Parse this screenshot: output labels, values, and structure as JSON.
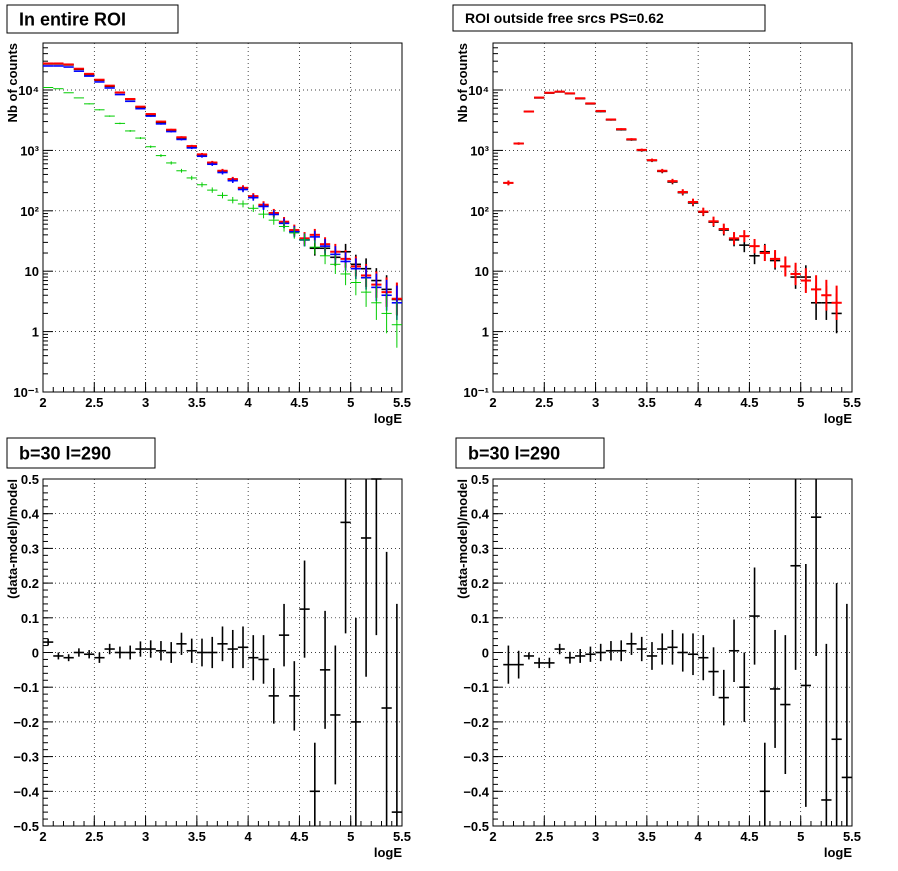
{
  "colors": {
    "data": "#000000",
    "model": "#ff0000",
    "component_blue": "#0000ff",
    "component_green": "#00cc00"
  },
  "chart_data": [
    {
      "type": "scatter",
      "title": "In entire ROI",
      "xlabel": "logE",
      "ylabel": "Nb of counts",
      "yscale": "log",
      "xlim": [
        2,
        5.5
      ],
      "ylim": [
        0.1,
        60000
      ],
      "grid": true,
      "x_ticks": [
        "2",
        "2.5",
        "3",
        "3.5",
        "4",
        "4.5",
        "5",
        "5.5"
      ],
      "y_ticks": [
        "10⁻¹",
        "1",
        "10",
        "10²",
        "10³",
        "10⁴"
      ],
      "x": [
        2.05,
        2.15,
        2.25,
        2.35,
        2.45,
        2.55,
        2.65,
        2.75,
        2.85,
        2.95,
        3.05,
        3.15,
        3.25,
        3.35,
        3.45,
        3.55,
        3.65,
        3.75,
        3.85,
        3.95,
        4.05,
        4.15,
        4.25,
        4.35,
        4.45,
        4.55,
        4.65,
        4.75,
        4.85,
        4.95,
        5.05,
        5.15,
        5.25,
        5.35,
        5.45
      ],
      "series": [
        {
          "color": "#000000",
          "values": [
            27000,
            27000,
            26000,
            22000,
            18000,
            14500,
            11500,
            9000,
            7000,
            5200,
            3900,
            2900,
            2150,
            1600,
            1150,
            850,
            620,
            450,
            330,
            235,
            170,
            122,
            90,
            63,
            46,
            33,
            24,
            24,
            17,
            21,
            13,
            11,
            7,
            5,
            3.4
          ]
        },
        {
          "color": "#ff0000",
          "values": [
            27500,
            27500,
            26500,
            22500,
            18500,
            14800,
            11800,
            9100,
            7100,
            5300,
            4000,
            3000,
            2200,
            1650,
            1180,
            860,
            630,
            460,
            335,
            240,
            175,
            126,
            92,
            66,
            48,
            35,
            40,
            28,
            21,
            16,
            12,
            8.5,
            6,
            4.5,
            3.5
          ]
        },
        {
          "color": "#0000ff",
          "values": [
            25000,
            25000,
            24000,
            20500,
            17000,
            13600,
            10800,
            8400,
            6500,
            4900,
            3700,
            2750,
            2050,
            1520,
            1100,
            800,
            590,
            430,
            315,
            225,
            165,
            118,
            87,
            62,
            45,
            33,
            37,
            26,
            19,
            14.5,
            11,
            7.8,
            5.4,
            4.0,
            3.0
          ]
        },
        {
          "color": "#00cc00",
          "values": [
            11000,
            10500,
            9000,
            7400,
            5900,
            4700,
            3700,
            2800,
            2100,
            1600,
            1150,
            820,
            620,
            460,
            350,
            270,
            220,
            180,
            150,
            130,
            110,
            88,
            70,
            55,
            43,
            33,
            25,
            18,
            13,
            9,
            6.5,
            4.5,
            3,
            2,
            1.3
          ]
        }
      ]
    },
    {
      "type": "scatter",
      "title": "ROI outside free srcs PS=0.62",
      "xlabel": "logE",
      "ylabel": "Nb of counts",
      "yscale": "log",
      "xlim": [
        2,
        5.5
      ],
      "ylim": [
        0.1,
        60000
      ],
      "grid": true,
      "x_ticks": [
        "2",
        "2.5",
        "3",
        "3.5",
        "4",
        "4.5",
        "5",
        "5.5"
      ],
      "y_ticks": [
        "10⁻¹",
        "1",
        "10",
        "10²",
        "10³",
        "10⁴"
      ],
      "x": [
        2.15,
        2.25,
        2.35,
        2.45,
        2.55,
        2.65,
        2.75,
        2.85,
        2.95,
        3.05,
        3.15,
        3.25,
        3.35,
        3.45,
        3.55,
        3.65,
        3.75,
        3.85,
        3.95,
        4.05,
        4.15,
        4.25,
        4.35,
        4.45,
        4.55,
        4.65,
        4.75,
        4.85,
        4.95,
        5.05,
        5.15,
        5.25,
        5.35,
        5.45
      ],
      "series": [
        {
          "color": "#000000",
          "values": [
            290,
            1300,
            4400,
            7400,
            8900,
            9300,
            8700,
            7200,
            5900,
            4400,
            3200,
            2200,
            1500,
            1000,
            680,
            450,
            300,
            200,
            135,
            95,
            65,
            48,
            33,
            27,
            18,
            21,
            15,
            12,
            8,
            8,
            3,
            3,
            2
          ]
        },
        {
          "color": "#ff0000",
          "values": [
            290,
            1300,
            4400,
            7500,
            9000,
            9400,
            8800,
            7300,
            6000,
            4500,
            3250,
            2250,
            1530,
            1020,
            690,
            460,
            310,
            205,
            140,
            97,
            67,
            50,
            35,
            38,
            26,
            20,
            16,
            12,
            9,
            7,
            5,
            4,
            3
          ]
        }
      ]
    },
    {
      "type": "scatter",
      "title": "b=30 l=290",
      "xlabel": "logE",
      "ylabel": "(data-model)/model",
      "xlim": [
        2,
        5.5
      ],
      "ylim": [
        -0.5,
        0.5
      ],
      "grid": true,
      "x_ticks": [
        "2",
        "2.5",
        "3",
        "3.5",
        "4",
        "4.5",
        "5",
        "5.5"
      ],
      "y_ticks": [
        "-0.5",
        "-0.4",
        "-0.3",
        "-0.2",
        "-0.1",
        "0",
        "0.1",
        "0.2",
        "0.3",
        "0.4",
        "0.5"
      ],
      "x": [
        2.05,
        2.15,
        2.25,
        2.35,
        2.45,
        2.55,
        2.65,
        2.75,
        2.85,
        2.95,
        3.05,
        3.15,
        3.25,
        3.35,
        3.45,
        3.55,
        3.65,
        3.75,
        3.85,
        3.95,
        4.05,
        4.15,
        4.25,
        4.35,
        4.45,
        4.55,
        4.65,
        4.75,
        4.85,
        4.95,
        5.05,
        5.15,
        5.25,
        5.35,
        5.45
      ],
      "series": [
        {
          "color": "#000000",
          "values": [
            0.03,
            -0.01,
            -0.015,
            0.0,
            -0.005,
            -0.015,
            0.01,
            0.0,
            0.0,
            0.01,
            0.01,
            0.005,
            0.0,
            0.025,
            0.005,
            0.0,
            0.0,
            0.025,
            0.01,
            0.015,
            -0.015,
            -0.02,
            -0.125,
            0.05,
            -0.125,
            0.125,
            -0.4,
            -0.05,
            -0.18,
            0.375,
            -0.2,
            0.33,
            0.5,
            -0.16,
            -0.46
          ],
          "errors": [
            0.01,
            0.01,
            0.01,
            0.012,
            0.012,
            0.015,
            0.015,
            0.017,
            0.02,
            0.022,
            0.025,
            0.028,
            0.03,
            0.032,
            0.035,
            0.04,
            0.045,
            0.05,
            0.055,
            0.06,
            0.065,
            0.07,
            0.08,
            0.09,
            0.1,
            0.14,
            0.14,
            0.17,
            0.2,
            0.32,
            0.3,
            0.4,
            0.45,
            0.45,
            0.6
          ]
        }
      ]
    },
    {
      "type": "scatter",
      "title": "b=30 l=290",
      "xlabel": "logE",
      "ylabel": "(data-model)/model",
      "xlim": [
        2,
        5.5
      ],
      "ylim": [
        -0.5,
        0.5
      ],
      "grid": true,
      "x_ticks": [
        "2",
        "2.5",
        "3",
        "3.5",
        "4",
        "4.5",
        "5",
        "5.5"
      ],
      "y_ticks": [
        "-0.5",
        "-0.4",
        "-0.3",
        "-0.2",
        "-0.1",
        "0",
        "0.1",
        "0.2",
        "0.3",
        "0.4",
        "0.5"
      ],
      "x": [
        2.15,
        2.25,
        2.35,
        2.45,
        2.55,
        2.65,
        2.75,
        2.85,
        2.95,
        3.05,
        3.15,
        3.25,
        3.35,
        3.45,
        3.55,
        3.65,
        3.75,
        3.85,
        3.95,
        4.05,
        4.15,
        4.25,
        4.35,
        4.45,
        4.55,
        4.65,
        4.75,
        4.85,
        4.95,
        5.05,
        5.15,
        5.25,
        5.35,
        5.45
      ],
      "series": [
        {
          "color": "#000000",
          "values": [
            -0.035,
            -0.035,
            -0.01,
            -0.03,
            -0.03,
            0.01,
            -0.015,
            -0.01,
            -0.005,
            0.0,
            0.005,
            0.005,
            0.025,
            0.01,
            -0.01,
            0.01,
            0.015,
            0.0,
            -0.005,
            -0.015,
            -0.055,
            -0.13,
            0.005,
            -0.1,
            0.105,
            -0.4,
            -0.105,
            -0.15,
            0.25,
            -0.095,
            0.39,
            -0.425,
            -0.25,
            -0.36
          ],
          "errors": [
            0.055,
            0.04,
            0.01,
            0.015,
            0.015,
            0.015,
            0.017,
            0.02,
            0.022,
            0.025,
            0.028,
            0.03,
            0.032,
            0.035,
            0.04,
            0.045,
            0.05,
            0.055,
            0.06,
            0.065,
            0.07,
            0.08,
            0.09,
            0.1,
            0.14,
            0.14,
            0.17,
            0.2,
            0.3,
            0.35,
            0.4,
            0.45,
            0.45,
            0.5
          ]
        }
      ]
    }
  ]
}
